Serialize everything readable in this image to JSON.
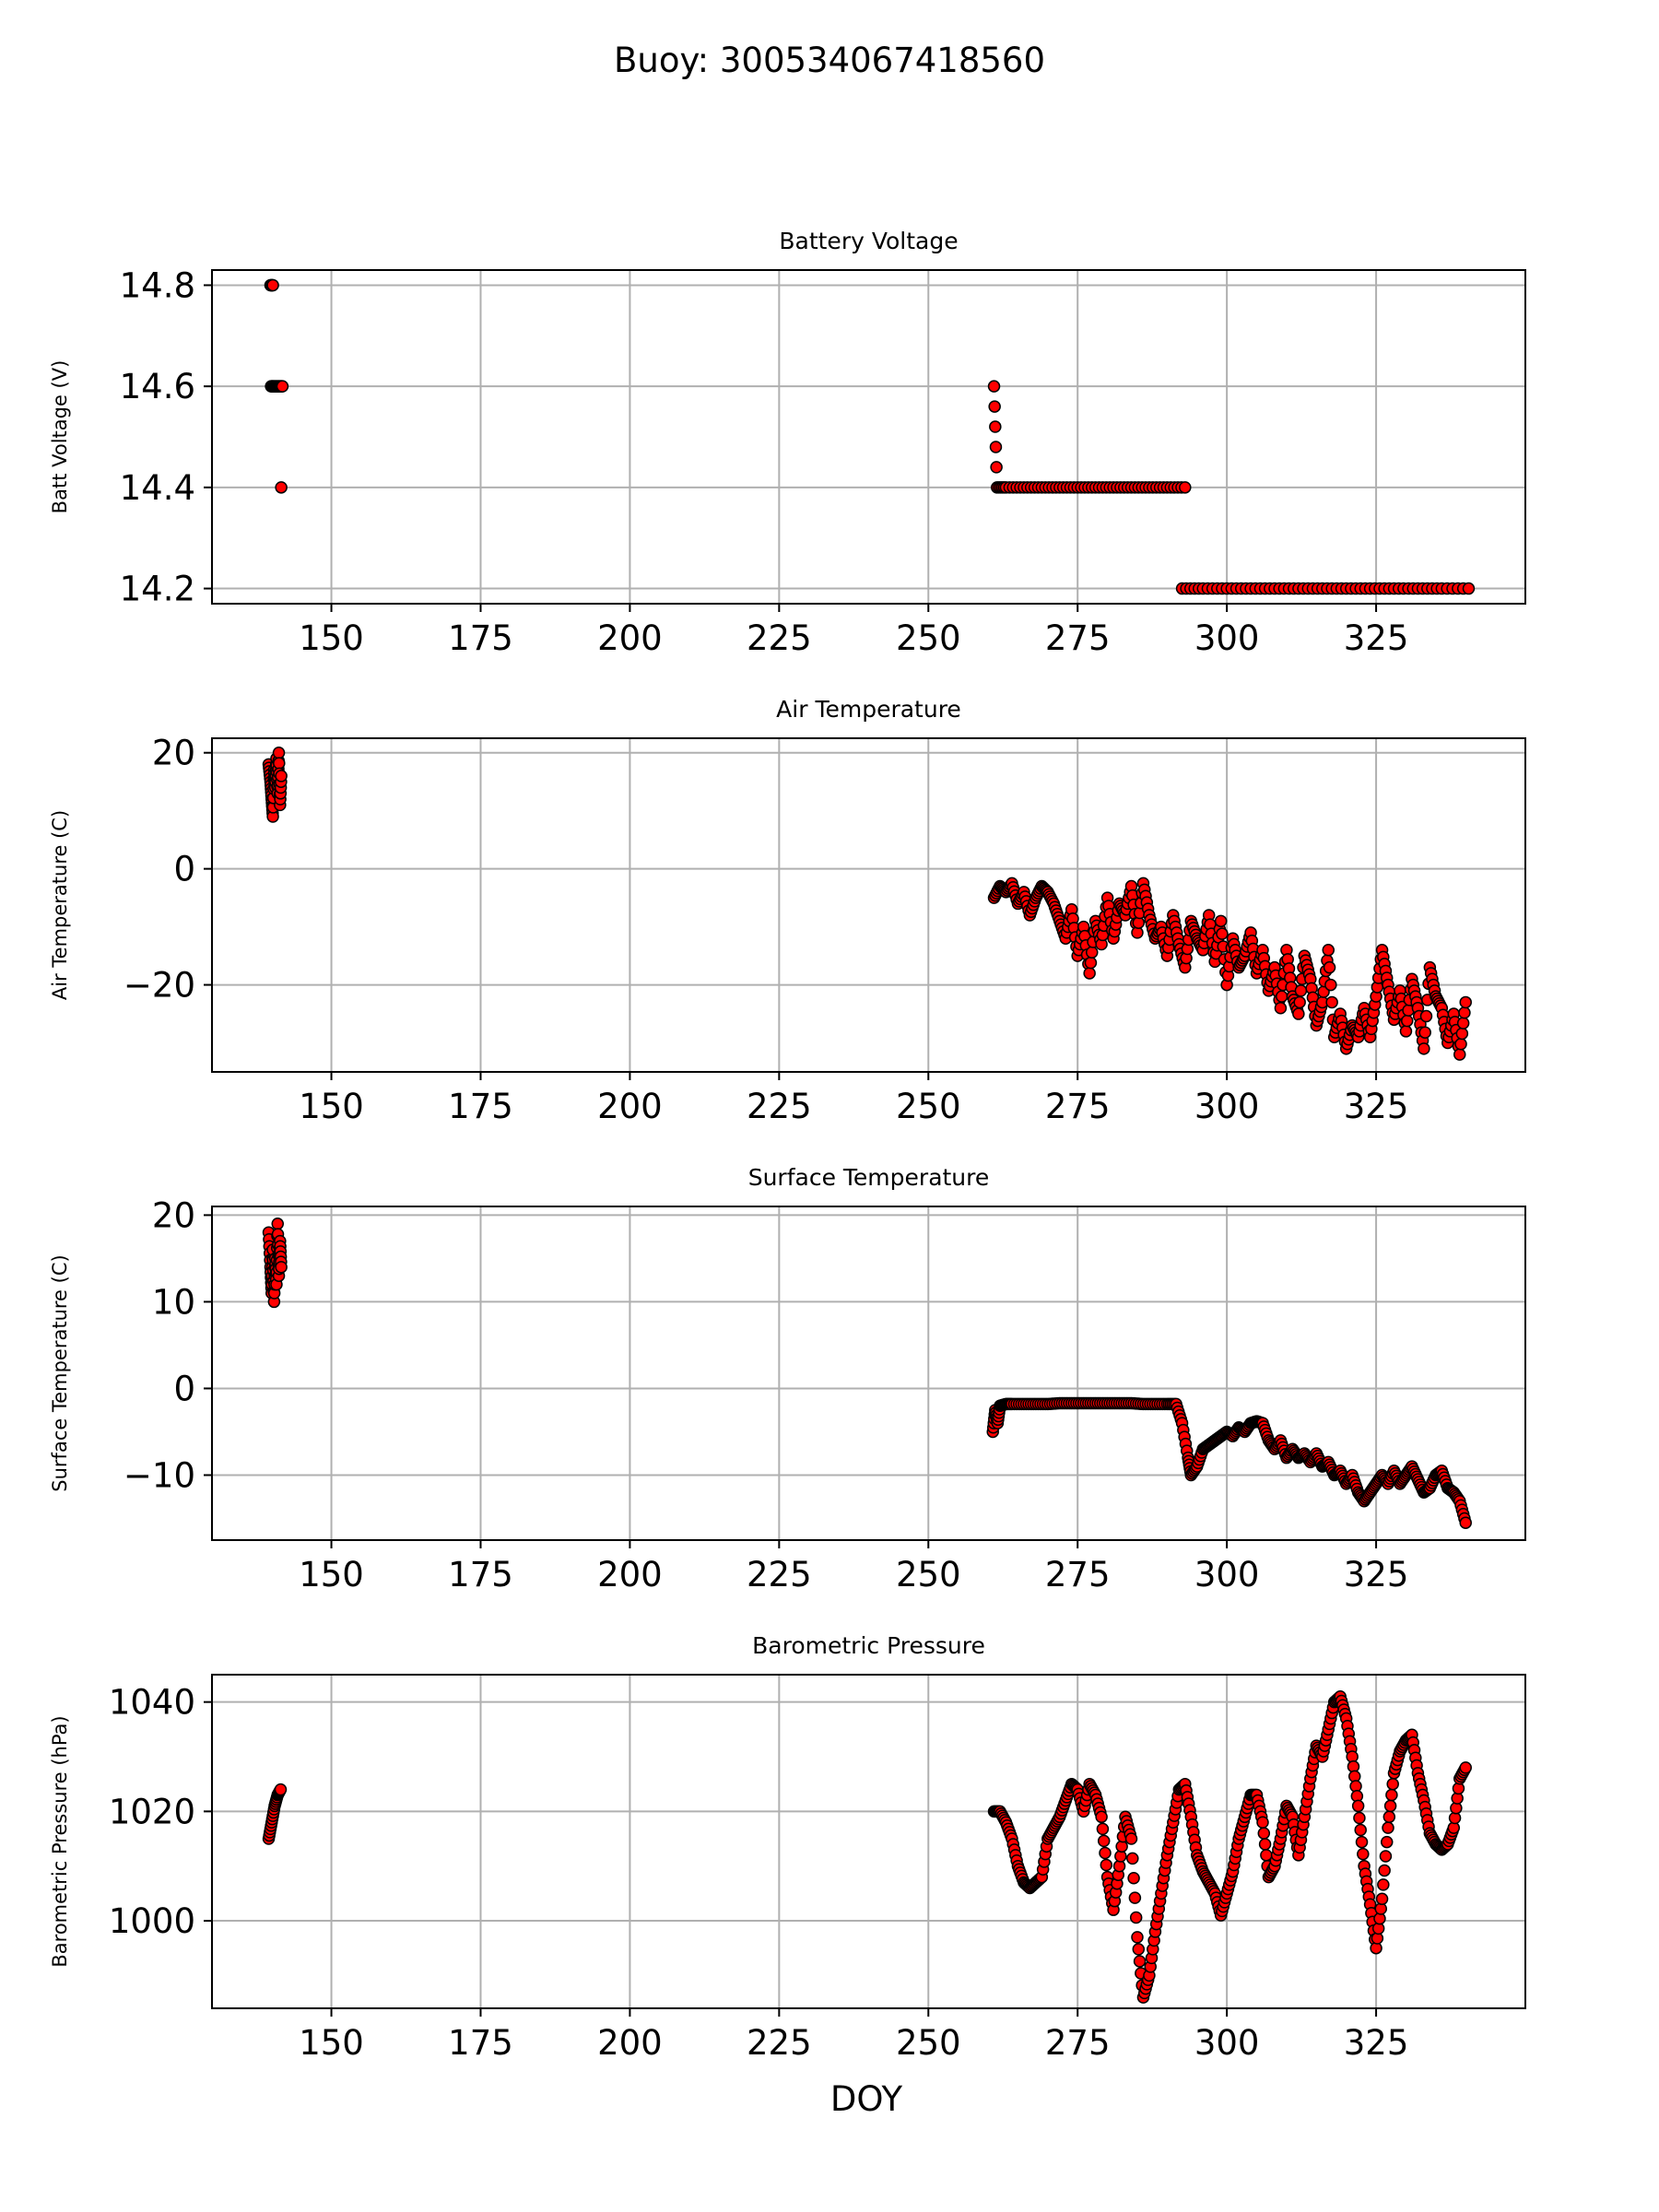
{
  "figure": {
    "title": "Buoy: 300534067418560",
    "xlabel": "DOY"
  },
  "style": {
    "marker_fill": "#ff0000",
    "marker_edge": "#000000",
    "grid": "#b0b0b0"
  },
  "chart_data": [
    {
      "type": "scatter",
      "title": "Battery Voltage",
      "xlabel": "",
      "ylabel": "Batt Voltage (V)",
      "xlim": [
        130,
        350
      ],
      "ylim": [
        14.17,
        14.83
      ],
      "xticks": [
        150,
        175,
        200,
        225,
        250,
        275,
        300,
        325
      ],
      "yticks": [
        14.2,
        14.4,
        14.6,
        14.8
      ],
      "ytick_labels": [
        "14.2",
        "14.4",
        "14.6",
        "14.8"
      ],
      "grid": true,
      "series": [
        {
          "name": "",
          "x": [
            139.8,
            140.2,
            139.9,
            140.3,
            140.8,
            141.3,
            141.8,
            141.6,
            261.0,
            261.5,
            263,
            266,
            269,
            272,
            275,
            278,
            281,
            284,
            287,
            290,
            293.0,
            292.5,
            296,
            300,
            304,
            308,
            312,
            316,
            320,
            324,
            328,
            332,
            336,
            340.5
          ],
          "y": [
            14.8,
            14.8,
            14.6,
            14.6,
            14.6,
            14.6,
            14.6,
            14.4,
            14.6,
            14.4,
            14.4,
            14.4,
            14.4,
            14.4,
            14.4,
            14.4,
            14.4,
            14.4,
            14.4,
            14.4,
            14.4,
            14.2,
            14.2,
            14.2,
            14.2,
            14.2,
            14.2,
            14.2,
            14.2,
            14.2,
            14.2,
            14.2,
            14.2,
            14.2
          ]
        }
      ]
    },
    {
      "type": "scatter",
      "title": "Air Temperature",
      "xlabel": "",
      "ylabel": "Air Temperature (C)",
      "xlim": [
        130,
        350
      ],
      "ylim": [
        -35,
        22.5
      ],
      "xticks": [
        150,
        175,
        200,
        225,
        250,
        275,
        300,
        325
      ],
      "yticks": [
        -20,
        0,
        20
      ],
      "ytick_labels": [
        "−20",
        "0",
        "20"
      ],
      "grid": true,
      "series": [
        {
          "name": "",
          "x": [
            139.5,
            139.8,
            140.0,
            140.2,
            140.4,
            140.6,
            140.8,
            141.0,
            141.2,
            141.4,
            141.6,
            261.0,
            262,
            263,
            264,
            265,
            266,
            267,
            268,
            269,
            270,
            271,
            272,
            273,
            274,
            275,
            276,
            277,
            278,
            279,
            280,
            281,
            282,
            283,
            284,
            285,
            286,
            287,
            288,
            289,
            290,
            291,
            292,
            293,
            294,
            295,
            296,
            297,
            298,
            299,
            300,
            301,
            302,
            303,
            304,
            305,
            306,
            307,
            308,
            309,
            310,
            311,
            312,
            313,
            314,
            315,
            316,
            317,
            318,
            319,
            320,
            321,
            322,
            323,
            324,
            325,
            326,
            327,
            328,
            329,
            330,
            331,
            332,
            333,
            334,
            335,
            336,
            337,
            338,
            339,
            340
          ],
          "y": [
            18,
            15,
            12,
            9,
            17,
            14,
            19,
            13,
            20,
            11,
            16,
            -5,
            -3,
            -4,
            -2.5,
            -6,
            -4,
            -8,
            -5,
            -3,
            -4,
            -6,
            -9,
            -12,
            -7,
            -15,
            -10,
            -18,
            -9,
            -13,
            -5,
            -12,
            -6,
            -8,
            -3,
            -11,
            -2.5,
            -8,
            -12,
            -10,
            -15,
            -8,
            -13,
            -17,
            -9,
            -12,
            -14,
            -8,
            -16,
            -9,
            -20,
            -12,
            -17,
            -15,
            -11,
            -18,
            -14,
            -21,
            -17,
            -24,
            -14,
            -22,
            -25,
            -15,
            -19,
            -27,
            -23,
            -14,
            -29,
            -25,
            -31,
            -27,
            -29,
            -24,
            -29,
            -22,
            -14,
            -20,
            -26,
            -21,
            -28,
            -19,
            -24,
            -31,
            -17,
            -22,
            -24,
            -30,
            -25,
            -32,
            -23
          ]
        }
      ]
    },
    {
      "type": "scatter",
      "title": "Surface Temperature",
      "xlabel": "",
      "ylabel": "Surface Temperature (C)",
      "xlim": [
        130,
        350
      ],
      "ylim": [
        -17.5,
        21
      ],
      "xticks": [
        150,
        175,
        200,
        225,
        250,
        275,
        300,
        325
      ],
      "yticks": [
        -10,
        0,
        10,
        20
      ],
      "ytick_labels": [
        "−10",
        "0",
        "10",
        "20"
      ],
      "grid": true,
      "series": [
        {
          "name": "",
          "x": [
            139.5,
            139.8,
            140.0,
            140.2,
            140.4,
            140.6,
            140.8,
            141.0,
            141.2,
            141.4,
            141.6,
            260.8,
            261.2,
            261.6,
            262,
            263,
            264,
            266,
            268,
            270,
            272,
            274,
            276,
            278,
            280,
            282,
            284,
            286,
            288,
            290,
            291.5,
            292.5,
            293.5,
            294,
            295,
            296,
            297,
            298,
            299,
            300,
            301,
            302,
            303,
            304,
            305,
            306,
            307,
            308,
            309,
            310,
            311,
            312,
            313,
            314,
            315,
            316,
            317,
            318,
            319,
            320,
            321,
            322,
            323,
            324,
            325,
            326,
            327,
            328,
            329,
            330,
            331,
            332,
            333,
            334,
            335,
            336,
            337,
            338,
            339,
            340
          ],
          "y": [
            18,
            14,
            11,
            16,
            10,
            15,
            12,
            19,
            13,
            17,
            14,
            -5,
            -2.5,
            -4,
            -2,
            -1.8,
            -1.8,
            -1.8,
            -1.8,
            -1.8,
            -1.7,
            -1.7,
            -1.7,
            -1.7,
            -1.7,
            -1.7,
            -1.7,
            -1.8,
            -1.8,
            -1.8,
            -1.8,
            -4,
            -8,
            -10,
            -9,
            -7,
            -6.5,
            -6,
            -5.5,
            -5,
            -5.5,
            -4.5,
            -5,
            -4,
            -3.8,
            -4,
            -6,
            -7,
            -6,
            -8,
            -7,
            -8,
            -7.5,
            -8.5,
            -7.5,
            -9,
            -8.5,
            -10,
            -9.5,
            -11,
            -10,
            -12,
            -13,
            -12,
            -11,
            -10,
            -11,
            -9.5,
            -11,
            -10,
            -9,
            -10.5,
            -12,
            -11.5,
            -10,
            -9.5,
            -11.5,
            -12,
            -13,
            -15.5
          ]
        }
      ]
    },
    {
      "type": "scatter",
      "title": "Barometric Pressure",
      "xlabel": "DOY",
      "ylabel": "Barometric Pressure (hPa)",
      "xlim": [
        130,
        350
      ],
      "ylim": [
        984,
        1045
      ],
      "xticks": [
        150,
        175,
        200,
        225,
        250,
        275,
        300,
        325
      ],
      "yticks": [
        1000,
        1020,
        1040
      ],
      "ytick_labels": [
        "1000",
        "1020",
        "1040"
      ],
      "grid": true,
      "series": [
        {
          "name": "",
          "x": [
            139.5,
            140.0,
            140.5,
            141.0,
            141.5,
            261.0,
            262,
            263,
            264,
            265,
            266,
            267,
            268,
            269,
            270,
            271,
            272,
            273,
            274,
            275,
            276,
            277,
            278,
            279,
            280,
            281,
            282,
            283,
            284,
            285,
            286,
            287,
            288,
            289,
            290,
            291,
            292,
            293,
            294,
            295,
            296,
            297,
            298,
            299,
            300,
            301,
            302,
            303,
            304,
            305,
            306,
            307,
            308,
            309,
            310,
            311,
            312,
            313,
            314,
            315,
            316,
            317,
            318,
            319,
            320,
            321,
            322,
            323,
            324,
            325,
            326,
            327,
            328,
            329,
            330,
            331,
            332,
            333,
            334,
            335,
            336,
            337,
            338,
            339,
            340
          ],
          "y": [
            1015,
            1018,
            1021,
            1023,
            1024,
            1020,
            1020,
            1018,
            1015,
            1010,
            1007,
            1006,
            1007,
            1008,
            1015,
            1017,
            1019,
            1022,
            1025,
            1024,
            1020,
            1025,
            1023,
            1019,
            1008,
            1002,
            1010,
            1019,
            1015,
            997,
            986,
            990,
            998,
            1005,
            1012,
            1018,
            1024,
            1025,
            1019,
            1012,
            1009,
            1007,
            1005,
            1001,
            1005,
            1009,
            1015,
            1019,
            1023,
            1023,
            1018,
            1008,
            1010,
            1015,
            1021,
            1019,
            1012,
            1019,
            1026,
            1032,
            1030,
            1035,
            1040,
            1041,
            1037,
            1030,
            1021,
            1010,
            1003,
            995,
            1004,
            1017,
            1027,
            1031,
            1033,
            1034,
            1027,
            1022,
            1016,
            1014,
            1013,
            1014,
            1017,
            1026,
            1028
          ]
        }
      ]
    }
  ]
}
